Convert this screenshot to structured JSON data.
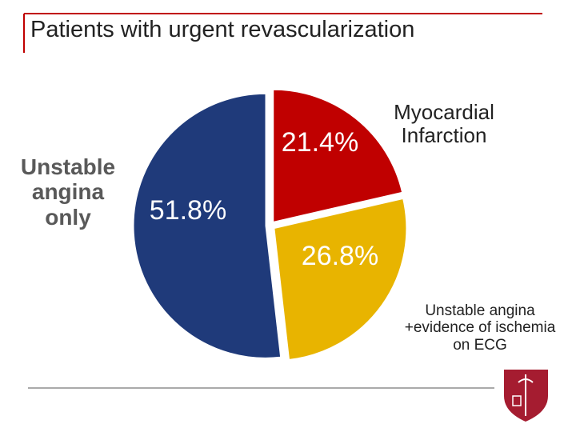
{
  "chart_data": {
    "type": "pie",
    "title": "Patients with urgent revascularization",
    "categories": [
      "Myocardial Infarction",
      "Unstable angina +evidence of ischemia on ECG",
      "Unstable angina only"
    ],
    "values": [
      21.4,
      26.8,
      51.8
    ],
    "value_labels": [
      "21.4%",
      "26.8%",
      "51.8%"
    ],
    "colors": [
      "#c00000",
      "#e8b400",
      "#1f3a7a"
    ]
  }
}
